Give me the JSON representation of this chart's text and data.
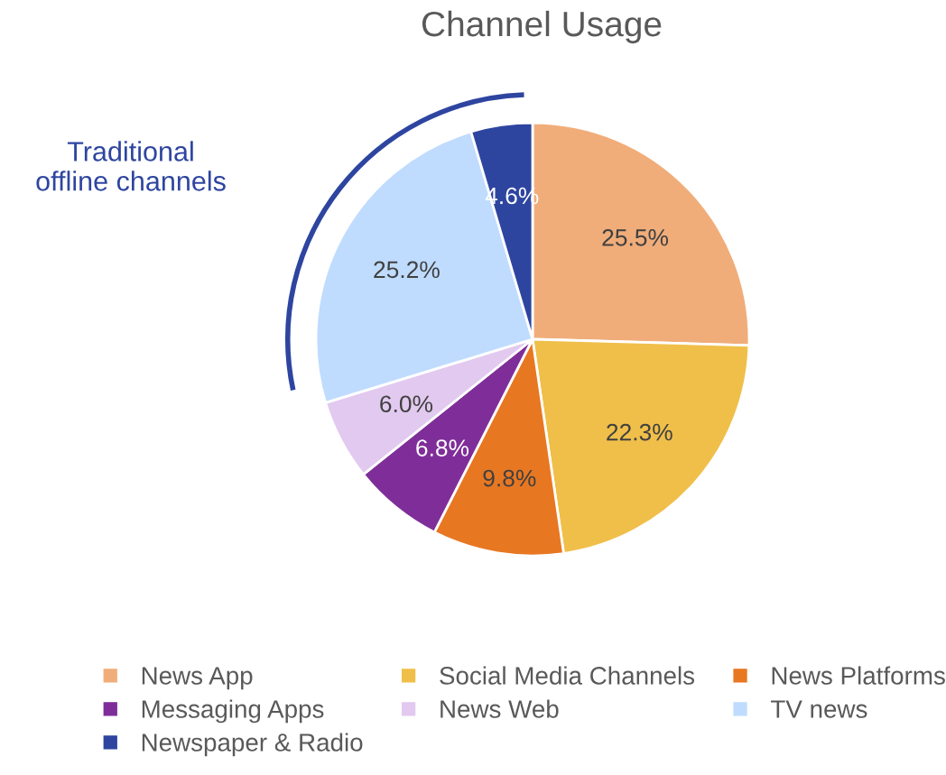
{
  "chart_data": {
    "type": "pie",
    "title": "Channel Usage",
    "categories": [
      "News App",
      "Social Media Channels",
      "News Platforms",
      "Messaging Apps",
      "News Web",
      "TV news",
      "Newspaper & Radio"
    ],
    "values": [
      25.5,
      22.3,
      9.8,
      6.8,
      6.0,
      25.2,
      4.6
    ],
    "value_labels": [
      "25.5%",
      "22.3%",
      "9.8%",
      "6.8%",
      "6.0%",
      "25.2%",
      "4.6%"
    ],
    "colors": [
      "#f0ad7a",
      "#f0bf4a",
      "#e87722",
      "#7f2e99",
      "#e2c9ef",
      "#bfdcff",
      "#2e45a0"
    ],
    "annotations": [
      "Traditional\noffline channels"
    ],
    "legend": "bottom"
  }
}
